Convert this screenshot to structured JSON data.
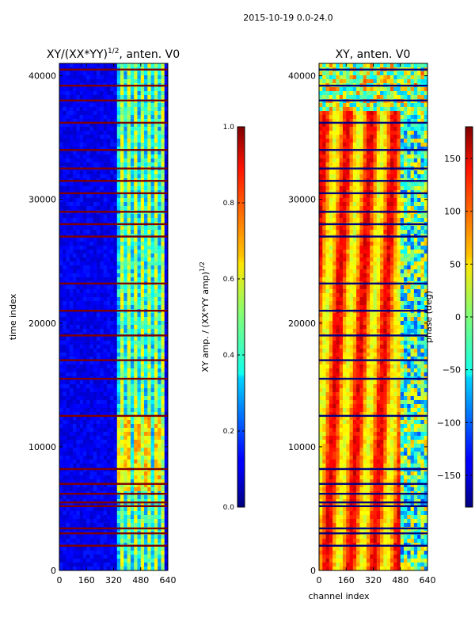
{
  "suptitle": "2015-10-19 0.0-24.0",
  "chart_data": [
    {
      "type": "heatmap",
      "title_main": "XY/(XX*YY)",
      "title_sup": "1/2",
      "title_rest": ", anten. V0",
      "xlabel": "",
      "ylabel": "time index",
      "xlim": [
        0,
        640
      ],
      "ylim": [
        0,
        41000
      ],
      "xticks": [
        0,
        160,
        320,
        480,
        640
      ],
      "yticks": [
        0,
        10000,
        20000,
        30000,
        40000
      ],
      "colorbar": {
        "label_main": "XY amp. / (XX*YY amp)",
        "label_sup": "1/2",
        "range": [
          0.0,
          1.0
        ],
        "ticks": [
          "0.0",
          "0.2",
          "0.4",
          "0.6",
          "0.8",
          "1.0"
        ]
      },
      "flagged_rows": [
        2000,
        3000,
        3400,
        5200,
        5500,
        6200,
        7000,
        8200,
        12500,
        15500,
        17000,
        19000,
        21000,
        23200,
        27000,
        28000,
        29000,
        30500,
        31500,
        32500,
        34000,
        36200,
        38000,
        39200,
        40500
      ],
      "strong_band_channels": [
        [
          350,
          610
        ]
      ]
    },
    {
      "type": "heatmap",
      "title_main": "XY, anten. V0",
      "xlabel": "channel index",
      "ylabel": "",
      "xlim": [
        0,
        640
      ],
      "ylim": [
        0,
        41000
      ],
      "xticks": [
        0,
        160,
        320,
        480,
        640
      ],
      "yticks": [
        0,
        10000,
        20000,
        30000,
        40000
      ],
      "colorbar": {
        "label": "phase (deg)",
        "range": [
          -180,
          180
        ],
        "ticks": [
          "-150",
          "-100",
          "-50",
          "0",
          "50",
          "100",
          "150"
        ],
        "tick_values": [
          -150,
          -100,
          -50,
          0,
          50,
          100,
          150
        ]
      },
      "flagged_rows": [
        2000,
        3000,
        3400,
        5200,
        5500,
        6200,
        7000,
        8200,
        12500,
        15500,
        17000,
        19000,
        21000,
        23200,
        27000,
        28000,
        29000,
        30500,
        31500,
        32500,
        34000,
        36200,
        38000,
        39200,
        40500
      ]
    }
  ]
}
